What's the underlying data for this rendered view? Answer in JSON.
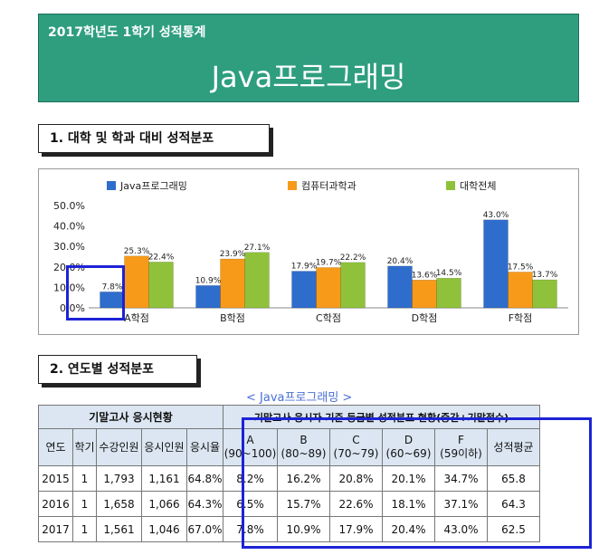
{
  "banner": {
    "small": "2017학년도 1학기 성적통계",
    "big": "Java프로그래밍"
  },
  "section1": {
    "title": "1. 대학 및 학과 대비 성적분포"
  },
  "section2": {
    "title": "2. 연도별 성적분포"
  },
  "table_subtitle": "< Java프로그래밍 >",
  "chart_data": {
    "type": "bar",
    "categories": [
      "A학점",
      "B학점",
      "C학점",
      "D학점",
      "F학점"
    ],
    "series": [
      {
        "name": "Java프로그래밍",
        "color": "#2f6dcc",
        "values": [
          7.8,
          10.9,
          17.9,
          20.4,
          43.0
        ],
        "labels": [
          "7.8%",
          "10.9%",
          "17.9%",
          "20.4%",
          "43.0%"
        ]
      },
      {
        "name": "컴퓨터과학과",
        "color": "#f79a19",
        "values": [
          25.3,
          23.9,
          19.7,
          13.6,
          17.5
        ],
        "labels": [
          "25.3%",
          "23.9%",
          "19.7%",
          "13.6%",
          "17.5%"
        ]
      },
      {
        "name": "대학전체",
        "color": "#8fc23a",
        "values": [
          22.4,
          27.1,
          22.2,
          14.5,
          13.7
        ],
        "labels": [
          "22.4%",
          "27.1%",
          "22.2%",
          "14.5%",
          "13.7%"
        ]
      }
    ],
    "yticks": [
      "0.0%",
      "10.0%",
      "20.0%",
      "30.0%",
      "40.0%",
      "50.0%"
    ],
    "ylim": [
      0,
      50
    ],
    "legend": "top"
  },
  "table": {
    "group1": "기말고사 응시현황",
    "group2": "기말고사 응시자 기준 등급별 성적분포 현황(중간+기말점수)",
    "headers": [
      [
        "연도"
      ],
      [
        "학기"
      ],
      [
        "수강인원"
      ],
      [
        "응시인원"
      ],
      [
        "응시율"
      ],
      [
        "A",
        "(90~100)"
      ],
      [
        "B",
        "(80~89)"
      ],
      [
        "C",
        "(70~79)"
      ],
      [
        "D",
        "(60~69)"
      ],
      [
        "F",
        "(59이하)"
      ],
      [
        "성적평균"
      ]
    ],
    "rows": [
      [
        "2015",
        "1",
        "1,793",
        "1,161",
        "64.8%",
        "8.2%",
        "16.2%",
        "20.8%",
        "20.1%",
        "34.7%",
        "65.8"
      ],
      [
        "2016",
        "1",
        "1,658",
        "1,066",
        "64.3%",
        "6.5%",
        "15.7%",
        "22.6%",
        "18.1%",
        "37.1%",
        "64.3"
      ],
      [
        "2017",
        "1",
        "1,561",
        "1,046",
        "67.0%",
        "7.8%",
        "10.9%",
        "17.9%",
        "20.4%",
        "43.0%",
        "62.5"
      ]
    ]
  }
}
